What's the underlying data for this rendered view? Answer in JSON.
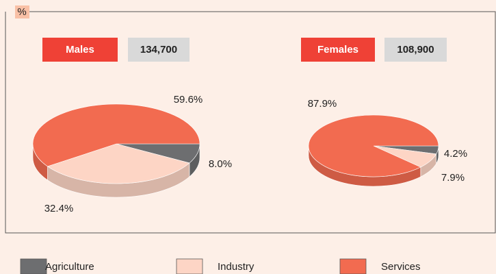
{
  "unit_label": "%",
  "chart_data": [
    {
      "type": "pie",
      "title": "Males",
      "total": {
        "value": 134700,
        "label": "134,700"
      },
      "categories": [
        "Agriculture",
        "Industry",
        "Services"
      ],
      "values": [
        8.0,
        32.4,
        59.6
      ],
      "value_labels": [
        "8.0%",
        "32.4%",
        "59.6%"
      ],
      "colors": [
        "#6d6e70",
        "#fdd5c5",
        "#f26b50"
      ]
    },
    {
      "type": "pie",
      "title": "Females",
      "total": {
        "value": 108900,
        "label": "108,900"
      },
      "categories": [
        "Agriculture",
        "Industry",
        "Services"
      ],
      "values": [
        4.2,
        7.9,
        87.9
      ],
      "value_labels": [
        "4.2%",
        "7.9%",
        "87.9%"
      ],
      "colors": [
        "#6d6e70",
        "#fdd5c5",
        "#f26b50"
      ]
    }
  ]
}
